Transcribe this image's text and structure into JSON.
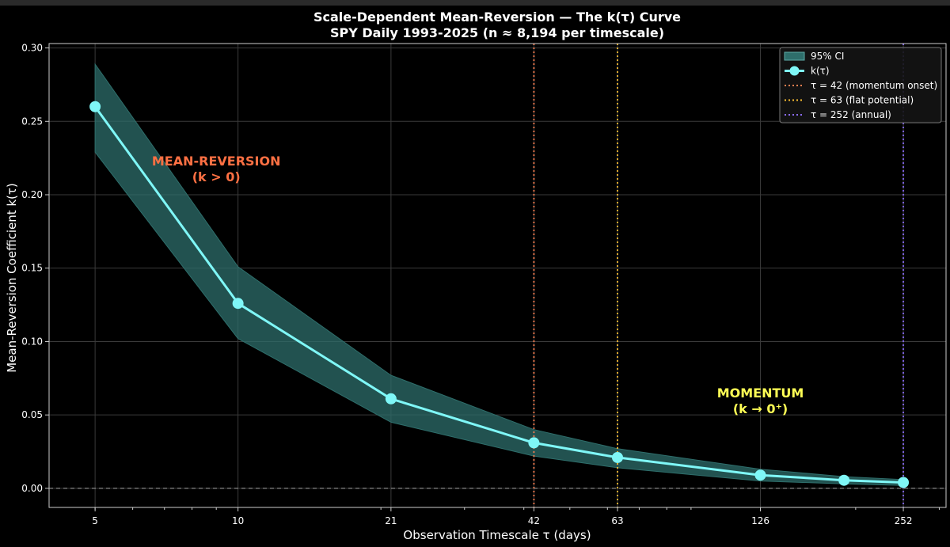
{
  "chart_data": {
    "type": "line",
    "title": "Scale-Dependent Mean-Reversion — The k(τ) Curve",
    "subtitle": "SPY Daily 1993-2025 (n ≈ 8,194 per timescale)",
    "xlabel": "Observation Timescale τ (days)",
    "ylabel": "Mean-Reversion Coefficient k(τ)",
    "x_scale": "log",
    "xlim": [
      4.0,
      310
    ],
    "ylim": [
      -0.013,
      0.303
    ],
    "x_ticks": [
      5,
      10,
      21,
      42,
      63,
      126,
      252
    ],
    "x_tick_labels": [
      "5",
      "10",
      "21",
      "42",
      "63",
      "126",
      "252"
    ],
    "y_ticks": [
      0.0,
      0.05,
      0.1,
      0.15,
      0.2,
      0.25,
      0.3
    ],
    "y_tick_labels": [
      "0.00",
      "0.05",
      "0.10",
      "0.15",
      "0.20",
      "0.25",
      "0.30"
    ],
    "grid": true,
    "legend_position": "top-right",
    "series": [
      {
        "name": "k(τ)",
        "color": "#7ff7f7",
        "x": [
          5,
          10,
          21,
          42,
          63,
          126,
          189,
          252
        ],
        "values": [
          0.26,
          0.126,
          0.061,
          0.031,
          0.021,
          0.009,
          0.0055,
          0.004
        ]
      }
    ],
    "confidence_band": {
      "name": "95% CI",
      "color": "#2e6e6b",
      "x": [
        5,
        10,
        21,
        42,
        63,
        126,
        189,
        252
      ],
      "lower": [
        0.229,
        0.102,
        0.045,
        0.022,
        0.014,
        0.005,
        0.003,
        0.002
      ],
      "upper": [
        0.289,
        0.151,
        0.077,
        0.04,
        0.027,
        0.013,
        0.008,
        0.006
      ]
    },
    "reference_line": {
      "y": 0.0,
      "style": "dashed",
      "color": "#bbbbbb"
    },
    "vlines": [
      {
        "x": 42,
        "label": "τ = 42 (momentum onset)",
        "color": "#ff7f50"
      },
      {
        "x": 63,
        "label": "τ = 63 (flat potential)",
        "color": "#ffc233"
      },
      {
        "x": 252,
        "label": "τ = 252 (annual)",
        "color": "#8b6cff"
      }
    ],
    "annotations": [
      {
        "lines": [
          "MEAN-REVERSION",
          "(k > 0)"
        ],
        "x": 9,
        "y": 0.22,
        "color": "#ff7043"
      },
      {
        "lines": [
          "MOMENTUM",
          "(k → 0⁺)"
        ],
        "x": 126,
        "y": 0.062,
        "color": "#ffff55"
      }
    ],
    "colors": {
      "background": "#000000",
      "grid": "#3a3a3a",
      "axes": "#cccccc",
      "text": "#ffffff"
    }
  }
}
